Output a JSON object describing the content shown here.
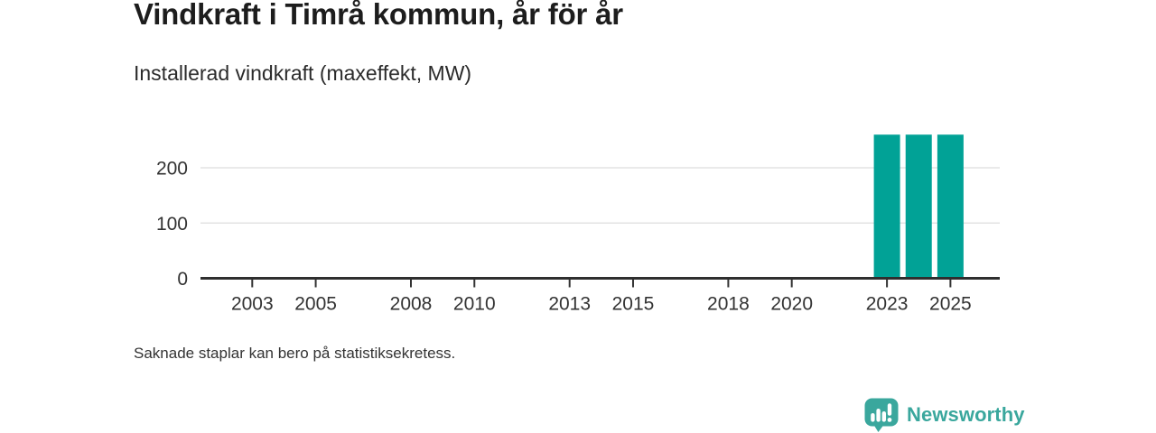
{
  "header": {
    "title": "Vindkraft i Timrå kommun, år för år",
    "subtitle": "Installerad vindkraft (maxeffekt, MW)"
  },
  "chart_data": {
    "type": "bar",
    "title": "Vindkraft i Timrå kommun, år för år",
    "subtitle": "Installerad vindkraft (maxeffekt, MW)",
    "unit": "MW",
    "x_domain_years": [
      2002,
      2026
    ],
    "x_tick_years": [
      2003,
      2005,
      2008,
      2010,
      2013,
      2015,
      2018,
      2020,
      2023,
      2025
    ],
    "y_ticks": [
      0,
      100,
      200
    ],
    "ylim": [
      0,
      270
    ],
    "grid": true,
    "legend": false,
    "bars": [
      {
        "year": 2023,
        "value": 260
      },
      {
        "year": 2024,
        "value": 260
      },
      {
        "year": 2025,
        "value": 260
      }
    ]
  },
  "footer": {
    "note": "Saknade staplar kan bero på statistiksekretess.",
    "brand": "Newsworthy"
  },
  "icons": {
    "logo": "newsworthy-speech-bubble-bar-chart-icon"
  },
  "colors": {
    "bar": "#01a296",
    "grid": "#e3e3e3",
    "axis": "#2f2f2f",
    "tick": "#333333",
    "title": "#1d1d1d",
    "subtitle": "#2b2b2b",
    "footnote": "#333333",
    "brand": "#3aa79d"
  }
}
